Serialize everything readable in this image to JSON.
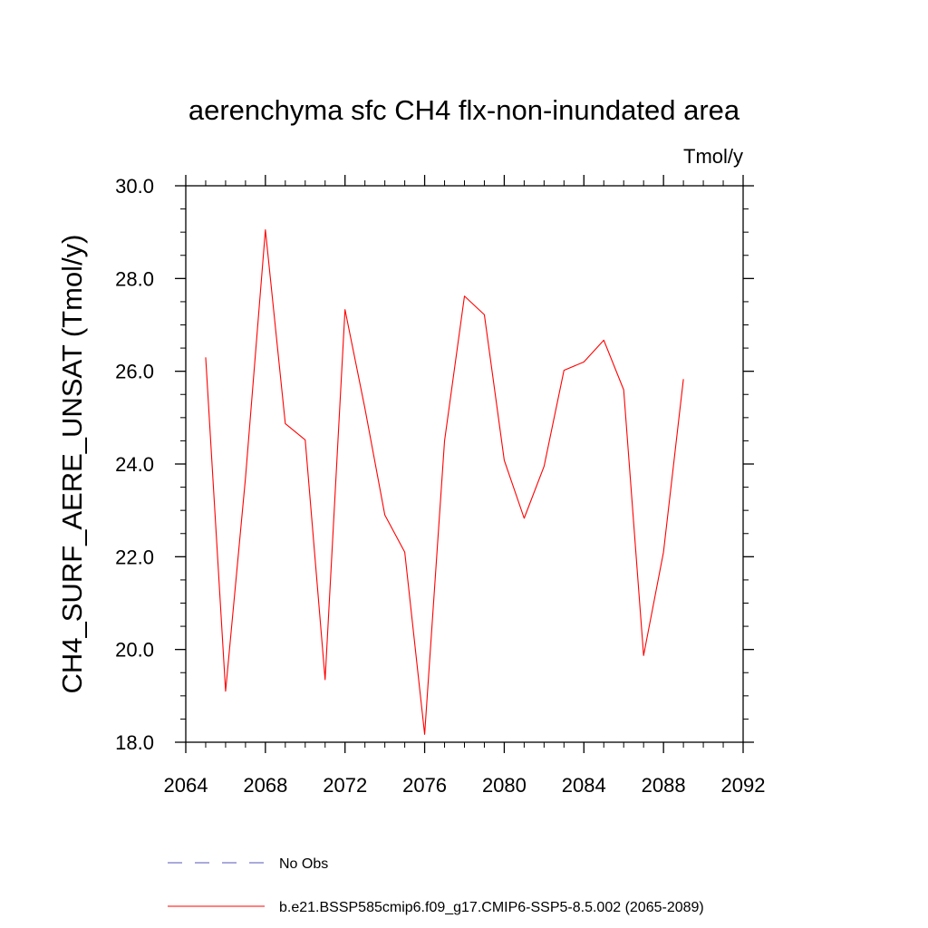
{
  "chart_data": {
    "type": "line",
    "title": "aerenchyma sfc CH4 flx-non-inundated area",
    "units_label": "Tmol/y",
    "ylabel": "CH4_SURF_AERE_UNSAT  (Tmol/y)",
    "xlabel": "",
    "xlim": [
      2064,
      2092
    ],
    "ylim": [
      18.0,
      30.0
    ],
    "x_ticks": [
      2064,
      2068,
      2072,
      2076,
      2080,
      2084,
      2088,
      2092
    ],
    "x_tick_labels": [
      "2064",
      "2068",
      "2072",
      "2076",
      "2080",
      "2084",
      "2088",
      "2092"
    ],
    "y_ticks": [
      18,
      20,
      22,
      24,
      26,
      28,
      30
    ],
    "y_tick_labels": [
      "18.0",
      "20.0",
      "22.0",
      "24.0",
      "26.0",
      "28.0",
      "30.0"
    ],
    "grid": false,
    "legend_position": "bottom",
    "series": [
      {
        "name": "b.e21.BSSP585cmip6.f09_g17.CMIP6-SSP5-8.5.002 (2065-2089)",
        "color": "#ff0000",
        "style": "solid",
        "x": [
          2065,
          2066,
          2067,
          2068,
          2069,
          2070,
          2071,
          2072,
          2073,
          2074,
          2075,
          2076,
          2077,
          2078,
          2079,
          2080,
          2081,
          2082,
          2083,
          2084,
          2085,
          2086,
          2087,
          2088,
          2089
        ],
        "y": [
          26.3,
          19.1,
          23.7,
          29.05,
          24.87,
          24.52,
          19.35,
          27.33,
          25.2,
          22.9,
          22.1,
          18.17,
          24.5,
          27.62,
          27.22,
          24.08,
          22.83,
          23.95,
          26.02,
          26.2,
          26.67,
          25.6,
          19.87,
          22.1,
          25.83
        ]
      }
    ],
    "legend": [
      {
        "label": "No Obs",
        "color": "#5555bb",
        "style": "dashed"
      },
      {
        "label": "b.e21.BSSP585cmip6.f09_g17.CMIP6-SSP5-8.5.002 (2065-2089)",
        "color": "#ff0000",
        "style": "solid"
      }
    ]
  }
}
